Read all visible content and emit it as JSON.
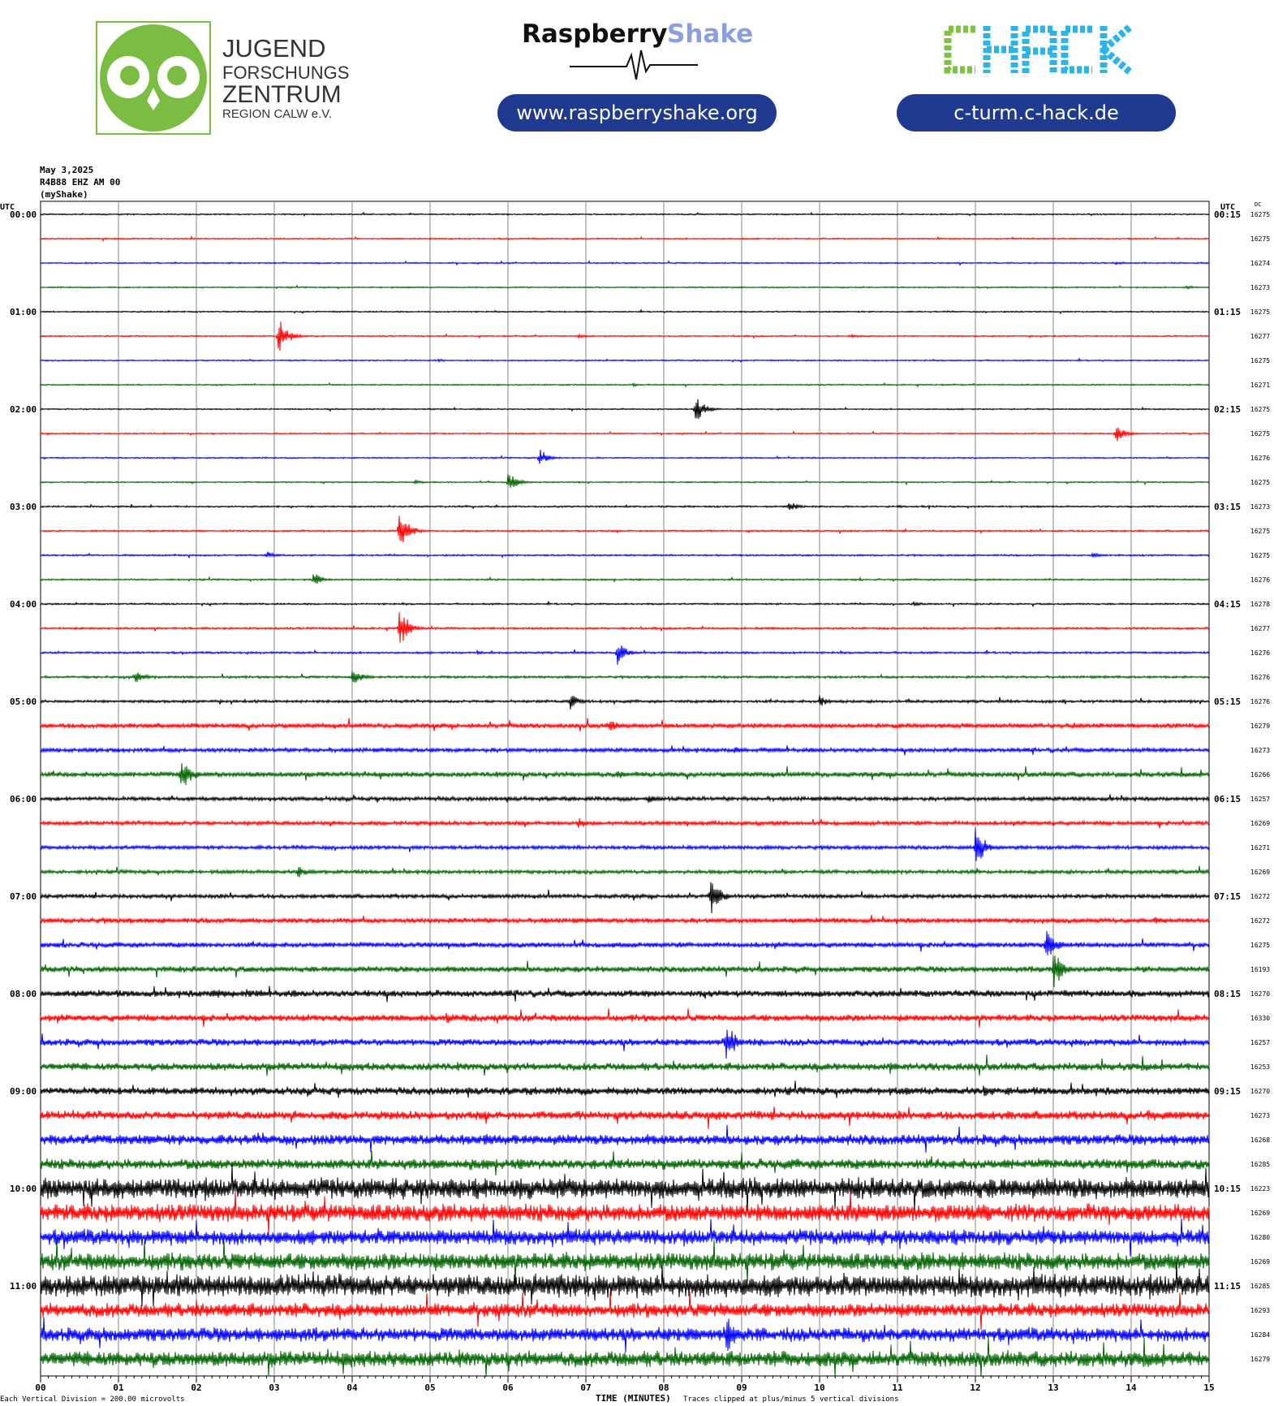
{
  "header": {
    "jfz": {
      "line1": "JUGEND",
      "line2": "FORSCHUNGS",
      "line3": "ZENTRUM",
      "line4": "REGION CALW e.V."
    },
    "raspberry": {
      "word1": "Raspberry",
      "word2": "Shake",
      "url": "www.raspberryshake.org"
    },
    "chack": {
      "logo": "CHACK",
      "url": "c-turm.c-hack.de"
    }
  },
  "info": {
    "date": "May 3,2025",
    "station": "R4B88 EHZ AM 00",
    "source": "(myShake)"
  },
  "axis": {
    "left_title": "UTC",
    "right_title": "UTC",
    "dc_title": "DC",
    "xlabel": "TIME (MINUTES)"
  },
  "footer": {
    "scale": "Each Vertical Division =  200.00 microvolts",
    "clip": "Traces clipped at plus/minus 5 vertical divisions"
  },
  "colors": {
    "trace": [
      "#000000",
      "#ff0000",
      "#0000ff",
      "#006400"
    ],
    "pill": "#1f3a8f",
    "owl_green": "#7bbd42",
    "rs_blue": "#8b9fe0",
    "chack_green": "#7ec242",
    "chack_blue": "#2ab4e8"
  },
  "chart_data": {
    "type": "line",
    "title": "",
    "xlabel": "TIME (MINUTES)",
    "xlim": [
      0,
      15
    ],
    "x_ticks": [
      "00",
      "01",
      "02",
      "03",
      "04",
      "05",
      "06",
      "07",
      "08",
      "09",
      "10",
      "11",
      "12",
      "13",
      "14",
      "15"
    ],
    "row_interval_minutes": 15,
    "left_time_labels": [
      "00:00",
      "01:00",
      "02:00",
      "03:00",
      "04:00",
      "05:00",
      "06:00",
      "07:00",
      "08:00",
      "09:00",
      "10:00",
      "11:00"
    ],
    "right_time_labels": [
      "00:15",
      "01:15",
      "02:15",
      "03:15",
      "04:15",
      "05:15",
      "06:15",
      "07:15",
      "08:15",
      "09:15",
      "10:15",
      "11:15"
    ],
    "dc_offsets": [
      "16275",
      "16275",
      "16274",
      "16273",
      "16275",
      "16277",
      "16275",
      "16271",
      "16275",
      "16275",
      "16276",
      "16275",
      "16273",
      "16275",
      "16275",
      "16276",
      "16278",
      "16277",
      "16276",
      "16276",
      "16276",
      "16279",
      "16273",
      "16266",
      "16257",
      "16269",
      "16271",
      "16269",
      "16272",
      "16272",
      "16275",
      "16193",
      "16270",
      "16330",
      "16257",
      "16253",
      "16270",
      "16273",
      "16268",
      "16285",
      "16223",
      "16269",
      "16280",
      "16269",
      "16285",
      "16293",
      "16284",
      "16279"
    ],
    "noise_level": [
      0.08,
      0.08,
      0.08,
      0.08,
      0.08,
      0.08,
      0.08,
      0.08,
      0.08,
      0.08,
      0.08,
      0.08,
      0.1,
      0.1,
      0.1,
      0.1,
      0.1,
      0.12,
      0.12,
      0.14,
      0.16,
      0.28,
      0.25,
      0.3,
      0.24,
      0.24,
      0.22,
      0.22,
      0.24,
      0.3,
      0.3,
      0.35,
      0.4,
      0.4,
      0.4,
      0.45,
      0.45,
      0.5,
      0.6,
      0.6,
      1.2,
      1.0,
      0.9,
      1.0,
      1.3,
      0.8,
      0.8,
      0.9
    ],
    "events": [
      {
        "row": 2,
        "minute": 13.8,
        "amp": 0.5
      },
      {
        "row": 3,
        "minute": 14.7,
        "amp": 0.6
      },
      {
        "row": 5,
        "minute": 3.05,
        "amp": 4.5
      },
      {
        "row": 5,
        "minute": 6.9,
        "amp": 0.6
      },
      {
        "row": 5,
        "minute": 10.4,
        "amp": 0.5
      },
      {
        "row": 6,
        "minute": 5.1,
        "amp": 0.4
      },
      {
        "row": 7,
        "minute": 7.6,
        "amp": 0.4
      },
      {
        "row": 8,
        "minute": 8.4,
        "amp": 3.5
      },
      {
        "row": 9,
        "minute": 13.8,
        "amp": 2.5
      },
      {
        "row": 10,
        "minute": 6.4,
        "amp": 2.2
      },
      {
        "row": 11,
        "minute": 4.8,
        "amp": 0.6
      },
      {
        "row": 11,
        "minute": 6.0,
        "amp": 2.5
      },
      {
        "row": 12,
        "minute": 9.6,
        "amp": 1.5
      },
      {
        "row": 12,
        "minute": 11.0,
        "amp": 0.4
      },
      {
        "row": 13,
        "minute": 4.6,
        "amp": 5.0
      },
      {
        "row": 14,
        "minute": 2.9,
        "amp": 0.9
      },
      {
        "row": 14,
        "minute": 13.5,
        "amp": 0.7
      },
      {
        "row": 15,
        "minute": 3.5,
        "amp": 1.8
      },
      {
        "row": 16,
        "minute": 11.2,
        "amp": 0.7
      },
      {
        "row": 17,
        "minute": 4.6,
        "amp": 5.0
      },
      {
        "row": 18,
        "minute": 7.4,
        "amp": 3.0
      },
      {
        "row": 18,
        "minute": 5.6,
        "amp": 0.6
      },
      {
        "row": 19,
        "minute": 1.2,
        "amp": 2.0
      },
      {
        "row": 19,
        "minute": 4.0,
        "amp": 2.5
      },
      {
        "row": 20,
        "minute": 6.8,
        "amp": 2.0
      },
      {
        "row": 20,
        "minute": 10.0,
        "amp": 1.5
      },
      {
        "row": 21,
        "minute": 7.3,
        "amp": 2.0
      },
      {
        "row": 22,
        "minute": 8.9,
        "amp": 1.2
      },
      {
        "row": 23,
        "minute": 1.8,
        "amp": 5.0
      },
      {
        "row": 23,
        "minute": 7.4,
        "amp": 1.5
      },
      {
        "row": 24,
        "minute": 7.8,
        "amp": 1.4
      },
      {
        "row": 25,
        "minute": 6.9,
        "amp": 1.5
      },
      {
        "row": 26,
        "minute": 12.0,
        "amp": 5.0
      },
      {
        "row": 27,
        "minute": 3.3,
        "amp": 2.0
      },
      {
        "row": 28,
        "minute": 8.6,
        "amp": 5.0
      },
      {
        "row": 29,
        "minute": 14.3,
        "amp": 1.5
      },
      {
        "row": 30,
        "minute": 12.9,
        "amp": 5.0
      },
      {
        "row": 31,
        "minute": 13.0,
        "amp": 5.0
      },
      {
        "row": 32,
        "minute": 2.2,
        "amp": 2.0
      },
      {
        "row": 33,
        "minute": 5.2,
        "amp": 2.0
      },
      {
        "row": 34,
        "minute": 8.8,
        "amp": 5.0
      },
      {
        "row": 35,
        "minute": 10.9,
        "amp": 1.8
      },
      {
        "row": 36,
        "minute": 12.1,
        "amp": 2.0
      },
      {
        "row": 37,
        "minute": 14.2,
        "amp": 2.2
      },
      {
        "row": 38,
        "minute": 5.7,
        "amp": 2.5
      },
      {
        "row": 40,
        "minute": 0.8,
        "amp": 2.0
      },
      {
        "row": 41,
        "minute": 10.6,
        "amp": 2.0
      },
      {
        "row": 44,
        "minute": 0.5,
        "amp": 2.2
      },
      {
        "row": 44,
        "minute": 6.5,
        "amp": 2.0
      },
      {
        "row": 46,
        "minute": 8.8,
        "amp": 5.0
      },
      {
        "row": 47,
        "minute": 9.6,
        "amp": 1.5
      }
    ]
  }
}
